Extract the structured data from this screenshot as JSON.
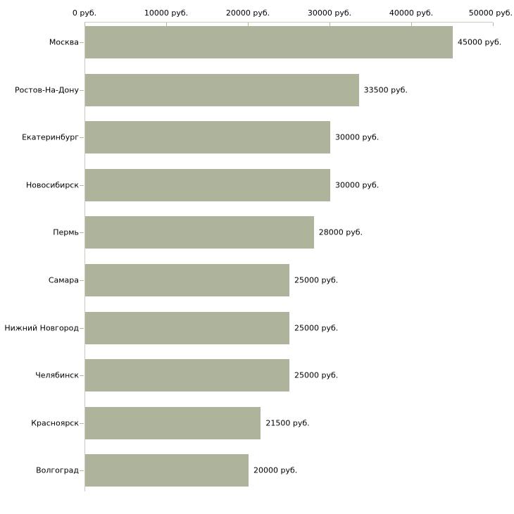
{
  "chart_data": {
    "type": "bar",
    "orientation": "horizontal",
    "title": "",
    "xlabel": "",
    "ylabel": "",
    "categories": [
      "Москва",
      "Ростов-На-Дону",
      "Екатеринбург",
      "Новосибирск",
      "Пермь",
      "Самара",
      "Нижний Новгород",
      "Челябинск",
      "Красноярск",
      "Волгоград"
    ],
    "values": [
      45000,
      33500,
      30000,
      30000,
      28000,
      25000,
      25000,
      25000,
      21500,
      20000
    ],
    "value_labels": [
      "45000 руб.",
      "33500 руб.",
      "30000 руб.",
      "30000 руб.",
      "28000 руб.",
      "25000 руб.",
      "25000 руб.",
      "25000 руб.",
      "21500 руб.",
      "20000 руб."
    ],
    "x_ticks": [
      0,
      10000,
      20000,
      30000,
      40000,
      50000
    ],
    "x_tick_labels": [
      "0 руб.",
      "10000 руб.",
      "20000 руб.",
      "30000 руб.",
      "40000 руб.",
      "50000 руб."
    ],
    "xlim": [
      0,
      50000
    ],
    "axis_position": "top",
    "grid": false,
    "legend": "none",
    "colors": {
      "bar_fill": "#aeb49b",
      "axis_line": "#c9ccbc",
      "tick_mark": "#b5bb8d",
      "text": "#000000",
      "background": "#ffffff"
    }
  }
}
